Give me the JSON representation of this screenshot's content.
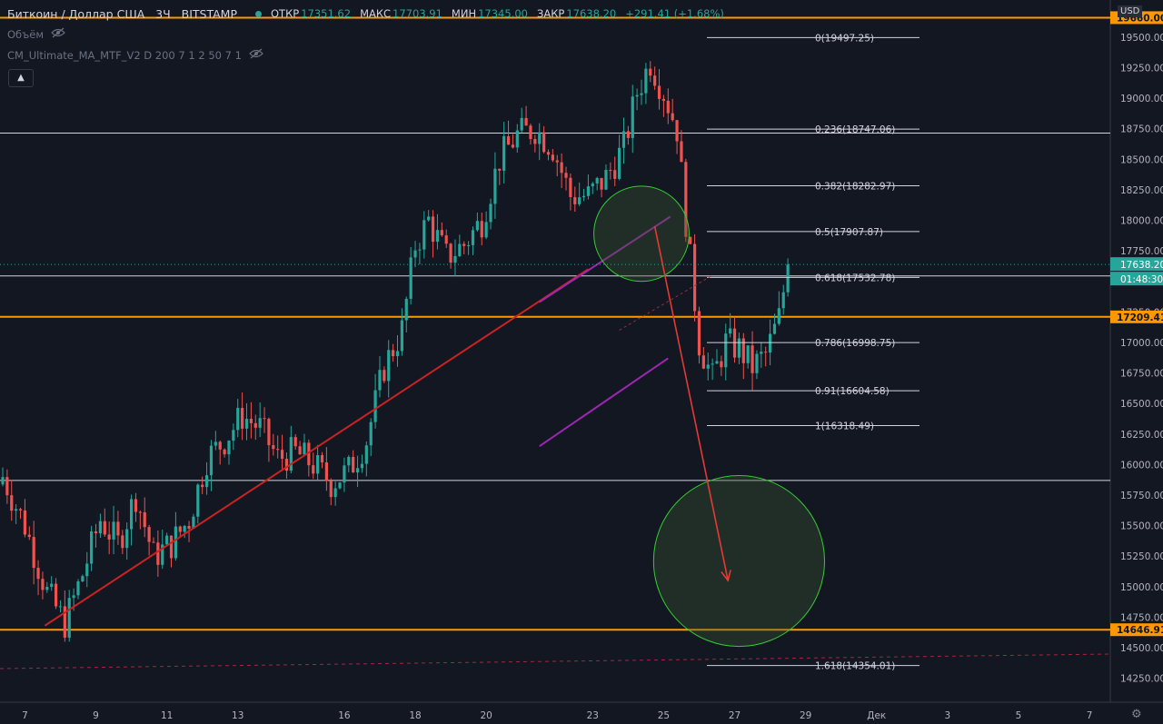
{
  "header": {
    "symbol": "Биткоин / Доллар США",
    "interval": "3Ч",
    "exchange": "BITSTAMP",
    "open_label": "ОТКР",
    "open_value": "17351.62",
    "high_label": "МАКС",
    "high_value": "17703.91",
    "low_label": "МИН",
    "low_value": "17345.00",
    "close_label": "ЗАКР",
    "close_value": "17638.20",
    "change": "+291.41 (+1.68%)"
  },
  "indicators": [
    {
      "label": "Объём"
    },
    {
      "label": "CM_Ultimate_MA_MTF_V2 D 200 7 1 2 50 7 1"
    }
  ],
  "currency_button": "USD",
  "chart_data": {
    "type": "candlestick",
    "title": "Биткоин / Доллар США",
    "ylim": [
      14150,
      19760
    ],
    "y_ticks": [
      "19500.00",
      "19250.00",
      "19000.00",
      "18750.00",
      "18500.00",
      "18250.00",
      "18000.00",
      "17750.00",
      "17500.00",
      "17250.00",
      "17000.00",
      "16750.00",
      "16500.00",
      "16250.00",
      "16000.00",
      "15750.00",
      "15500.00",
      "15250.00",
      "15000.00",
      "14750.00",
      "14500.00",
      "14250.00"
    ],
    "x_ticks": [
      {
        "label": "7",
        "i": 5
      },
      {
        "label": "9",
        "i": 21
      },
      {
        "label": "11",
        "i": 37
      },
      {
        "label": "13",
        "i": 53
      },
      {
        "label": "16",
        "i": 77
      },
      {
        "label": "18",
        "i": 93
      },
      {
        "label": "20",
        "i": 109
      },
      {
        "label": "23",
        "i": 133
      },
      {
        "label": "25",
        "i": 149
      },
      {
        "label": "27",
        "i": 165
      },
      {
        "label": "29",
        "i": 181
      },
      {
        "label": "Дек",
        "i": 197
      },
      {
        "label": "3",
        "i": 213
      },
      {
        "label": "5",
        "i": 229
      },
      {
        "label": "7",
        "i": 245
      }
    ],
    "price_anchors": [
      [
        0,
        15900
      ],
      [
        5,
        15500
      ],
      [
        10,
        14950
      ],
      [
        14,
        14700
      ],
      [
        18,
        15100
      ],
      [
        22,
        15550
      ],
      [
        26,
        15350
      ],
      [
        30,
        15750
      ],
      [
        34,
        15250
      ],
      [
        38,
        15350
      ],
      [
        42,
        15550
      ],
      [
        46,
        16050
      ],
      [
        50,
        16200
      ],
      [
        54,
        16400
      ],
      [
        58,
        16300
      ],
      [
        62,
        16050
      ],
      [
        66,
        16100
      ],
      [
        70,
        16000
      ],
      [
        74,
        15850
      ],
      [
        78,
        15950
      ],
      [
        82,
        16200
      ],
      [
        86,
        16800
      ],
      [
        90,
        17100
      ],
      [
        93,
        17800
      ],
      [
        96,
        18000
      ],
      [
        100,
        17700
      ],
      [
        104,
        17800
      ],
      [
        108,
        18000
      ],
      [
        112,
        18500
      ],
      [
        116,
        18700
      ],
      [
        120,
        18750
      ],
      [
        124,
        18600
      ],
      [
        128,
        18200
      ],
      [
        132,
        18200
      ],
      [
        136,
        18350
      ],
      [
        140,
        18600
      ],
      [
        143,
        19050
      ],
      [
        146,
        19300
      ],
      [
        149,
        19050
      ],
      [
        152,
        18750
      ],
      [
        154,
        18000
      ],
      [
        157,
        17000
      ],
      [
        160,
        16700
      ],
      [
        163,
        17000
      ],
      [
        166,
        16950
      ],
      [
        169,
        16800
      ],
      [
        172,
        16900
      ],
      [
        175,
        17200
      ],
      [
        177,
        17638.2
      ]
    ],
    "last_price": {
      "value": "17638.20",
      "countdown": "01:48:30",
      "color": "#26a69a"
    },
    "horizontal_levels": [
      {
        "price": 19660,
        "color": "#ff9800",
        "label": "19660.00"
      },
      {
        "price": 17209.41,
        "color": "#ff9800",
        "label": "17209.41"
      },
      {
        "price": 14646.91,
        "color": "#ff9800",
        "label": "14646.91"
      },
      {
        "price": 18715,
        "color": "#d1d4dc"
      },
      {
        "price": 17545,
        "color": "#d1d4dc"
      },
      {
        "price": 15870,
        "color": "#d1d4dc"
      }
    ],
    "fib_levels": [
      {
        "label": "0(19497.25)",
        "price": 19497.25
      },
      {
        "label": "0.236(18747.06)",
        "price": 18747.06
      },
      {
        "label": "0.382(18282.97)",
        "price": 18282.97
      },
      {
        "label": "0.5(17907.87)",
        "price": 17907.87
      },
      {
        "label": "0.618(17532.78)",
        "price": 17532.78
      },
      {
        "label": "0.786(16998.75)",
        "price": 16998.75
      },
      {
        "label": "0.91(16604.58)",
        "price": 16604.58
      },
      {
        "label": "1(16318.49)",
        "price": 16318.49
      },
      {
        "label": "1.618(14354.01)",
        "price": 14354.01
      }
    ],
    "trend_lines": [
      {
        "from": [
          9.5,
          14680
        ],
        "to": [
          132,
          17600
        ],
        "color": "#cc2222"
      },
      {
        "from": [
          121,
          17330
        ],
        "to": [
          150.5,
          18030
        ],
        "color": "#9c27b0"
      },
      {
        "from": [
          121,
          16150
        ],
        "to": [
          150,
          16870
        ],
        "color": "#9c27b0"
      }
    ],
    "target_arrow": {
      "from": [
        147,
        17950
      ],
      "to": [
        163.5,
        15050
      ],
      "color": "#e53935"
    },
    "target_zones": [
      {
        "center": [
          144,
          17890
        ],
        "radius_price": 390
      },
      {
        "center": [
          166,
          15210
        ],
        "radius_price": 700
      }
    ]
  }
}
